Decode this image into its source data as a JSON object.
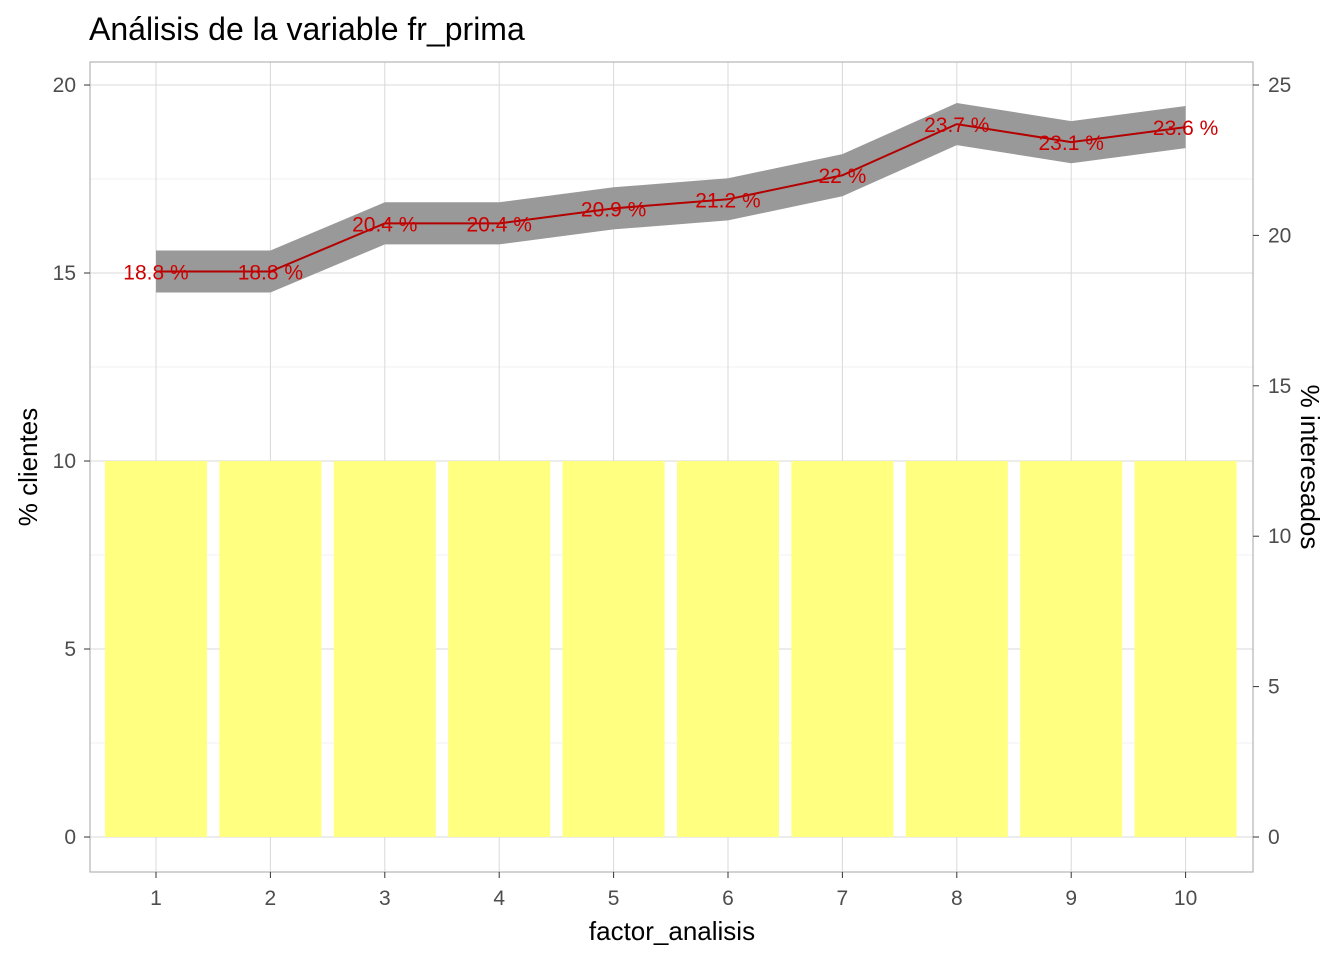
{
  "chart_data": {
    "type": "bar",
    "title": "Análisis de la variable fr_prima",
    "xlabel": "factor_analisis",
    "ylabel_left": "% clientes",
    "ylabel_right": "% interesados",
    "categories": [
      "1",
      "2",
      "3",
      "4",
      "5",
      "6",
      "7",
      "8",
      "9",
      "10"
    ],
    "bars": {
      "values": [
        10,
        10,
        10,
        10,
        10,
        10,
        10,
        10,
        10,
        10
      ],
      "color": "#ffff80"
    },
    "line": {
      "axis": "right",
      "values": [
        18.8,
        18.8,
        20.4,
        20.4,
        20.9,
        21.2,
        22.0,
        23.7,
        23.1,
        23.6
      ],
      "ribbon_low": [
        18.1,
        18.1,
        19.7,
        19.7,
        20.2,
        20.5,
        21.3,
        23.0,
        22.4,
        22.9
      ],
      "ribbon_high": [
        19.5,
        19.5,
        21.1,
        21.1,
        21.6,
        21.9,
        22.7,
        24.4,
        23.8,
        24.3
      ],
      "labels": [
        "18.8  %",
        "18.8  %",
        "20.4  %",
        "20.4  %",
        "20.9  %",
        "21.2  %",
        "22  %",
        "23.7  %",
        "23.1  %",
        "23.6  %"
      ],
      "color": "#b30000",
      "ribbon_color": "#999999"
    },
    "y_left_ticks": [
      "0",
      "5",
      "10",
      "15",
      "20"
    ],
    "y_right_ticks": [
      "0",
      "5",
      "10",
      "15",
      "20",
      "25"
    ],
    "y_left_range": [
      0,
      20
    ],
    "y_right_range": [
      0,
      25
    ],
    "grid": true
  }
}
